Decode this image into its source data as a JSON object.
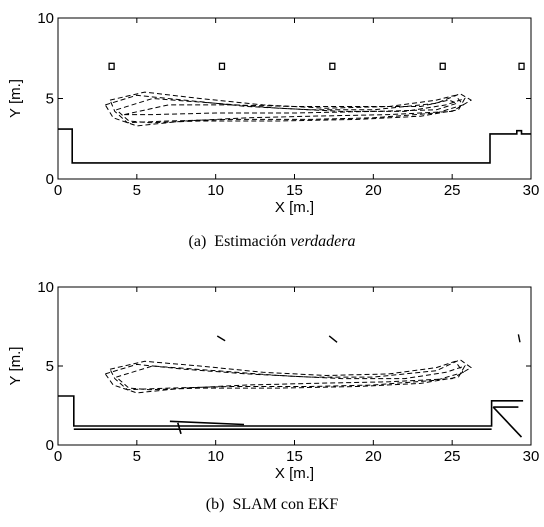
{
  "charts": [
    {
      "caption": {
        "prefix": "(a)",
        "text": "Estimación ",
        "emphasis": "verdadera"
      },
      "chart_data": {
        "type": "line",
        "xlabel": "X [m.]",
        "ylabel": "Y [m.]",
        "xlim": [
          0,
          30
        ],
        "ylim": [
          0,
          10
        ],
        "xticks": [
          0,
          5,
          10,
          15,
          20,
          25,
          30
        ],
        "yticks": [
          0,
          5,
          10
        ],
        "grid": false,
        "series": [
          {
            "style": "solid",
            "points": [
              [
                0,
                3.1
              ],
              [
                0.9,
                3.1
              ],
              [
                0.9,
                1.0
              ],
              [
                27.4,
                1.0
              ],
              [
                27.4,
                2.8
              ],
              [
                29.1,
                2.8
              ],
              [
                29.1,
                3.0
              ],
              [
                29.4,
                3.0
              ],
              [
                29.4,
                2.8
              ],
              [
                30,
                2.8
              ]
            ]
          },
          {
            "style": "dashed",
            "points": [
              [
                3,
                4.6
              ],
              [
                5,
                5.2
              ],
              [
                8,
                4.9
              ],
              [
                12,
                4.5
              ],
              [
                16,
                4.3
              ],
              [
                20,
                4.3
              ],
              [
                24,
                4.7
              ],
              [
                25.5,
                5.3
              ],
              [
                26.2,
                4.9
              ],
              [
                25,
                4.2
              ],
              [
                21,
                4.0
              ],
              [
                16,
                3.9
              ],
              [
                12,
                3.8
              ],
              [
                8,
                3.6
              ],
              [
                5,
                3.3
              ],
              [
                3.5,
                3.8
              ],
              [
                3,
                4.6
              ]
            ]
          },
          {
            "style": "dashed",
            "points": [
              [
                3.3,
                4.9
              ],
              [
                5.5,
                5.4
              ],
              [
                9,
                5.0
              ],
              [
                13,
                4.6
              ],
              [
                17,
                4.4
              ],
              [
                21,
                4.5
              ],
              [
                24,
                4.9
              ],
              [
                25.2,
                5.2
              ],
              [
                25.7,
                4.6
              ],
              [
                24,
                4.1
              ],
              [
                20,
                3.8
              ],
              [
                16,
                3.7
              ],
              [
                11,
                3.7
              ],
              [
                7,
                3.6
              ],
              [
                4.4,
                3.5
              ],
              [
                3.6,
                4.2
              ],
              [
                3.3,
                4.9
              ]
            ]
          },
          {
            "style": "dashed",
            "points": [
              [
                3.7,
                4.3
              ],
              [
                6,
                5.0
              ],
              [
                10,
                4.7
              ],
              [
                14,
                4.4
              ],
              [
                18,
                4.2
              ],
              [
                22,
                4.2
              ],
              [
                24.6,
                4.6
              ],
              [
                25.8,
                5.0
              ],
              [
                25.4,
                4.3
              ],
              [
                23,
                3.9
              ],
              [
                19,
                3.7
              ],
              [
                14,
                3.6
              ],
              [
                9,
                3.6
              ],
              [
                5.8,
                3.5
              ],
              [
                4.5,
                3.6
              ],
              [
                3.7,
                4.3
              ]
            ]
          },
          {
            "style": "dashed",
            "points": [
              [
                4.2,
                4.0
              ],
              [
                7,
                4.6
              ],
              [
                11,
                4.6
              ],
              [
                15,
                4.5
              ],
              [
                19,
                4.5
              ],
              [
                23,
                4.5
              ],
              [
                24.8,
                4.9
              ],
              [
                25.3,
                4.7
              ],
              [
                24,
                4.3
              ],
              [
                20,
                4.2
              ],
              [
                15,
                4.1
              ],
              [
                10,
                4.1
              ],
              [
                6,
                4.0
              ],
              [
                4.2,
                4.0
              ]
            ]
          }
        ],
        "landmarks": [
          [
            3.4,
            7.0
          ],
          [
            10.4,
            7.0
          ],
          [
            17.4,
            7.0
          ],
          [
            24.4,
            7.0
          ],
          [
            29.4,
            7.0
          ]
        ]
      }
    },
    {
      "caption": {
        "prefix": "(b)",
        "text": "SLAM con EKF",
        "emphasis": ""
      },
      "chart_data": {
        "type": "line",
        "xlabel": "X [m.]",
        "ylabel": "Y [m.]",
        "xlim": [
          0,
          30
        ],
        "ylim": [
          0,
          10
        ],
        "xticks": [
          0,
          5,
          10,
          15,
          20,
          25,
          30
        ],
        "yticks": [
          0,
          5,
          10
        ],
        "grid": false,
        "series": [
          {
            "style": "solid",
            "points": [
              [
                0,
                3.1
              ],
              [
                1.0,
                3.1
              ],
              [
                1.0,
                1.2
              ],
              [
                27.5,
                1.2
              ],
              [
                27.5,
                2.8
              ],
              [
                29.5,
                2.8
              ]
            ]
          },
          {
            "style": "solid",
            "points": [
              [
                1.0,
                1.0
              ],
              [
                27.5,
                1.0
              ]
            ]
          },
          {
            "style": "solid",
            "points": [
              [
                27.6,
                2.4
              ],
              [
                29.2,
                2.4
              ]
            ]
          },
          {
            "style": "solid",
            "points": [
              [
                27.6,
                2.4
              ],
              [
                29.4,
                0.5
              ]
            ]
          },
          {
            "style": "solid",
            "points": [
              [
                7.1,
                1.5
              ],
              [
                11.8,
                1.3
              ]
            ]
          },
          {
            "style": "solid",
            "points": [
              [
                7.6,
                1.4
              ],
              [
                7.8,
                0.7
              ]
            ]
          },
          {
            "style": "dashed",
            "points": [
              [
                3,
                4.5
              ],
              [
                5,
                5.1
              ],
              [
                8,
                4.8
              ],
              [
                12,
                4.5
              ],
              [
                16,
                4.3
              ],
              [
                20,
                4.3
              ],
              [
                24,
                4.7
              ],
              [
                25.5,
                5.4
              ],
              [
                26.2,
                4.9
              ],
              [
                25,
                4.2
              ],
              [
                21,
                4.0
              ],
              [
                16,
                3.9
              ],
              [
                12,
                3.8
              ],
              [
                8,
                3.6
              ],
              [
                5,
                3.3
              ],
              [
                3.5,
                3.8
              ],
              [
                3,
                4.5
              ]
            ]
          },
          {
            "style": "dashed",
            "points": [
              [
                3.3,
                4.8
              ],
              [
                5.5,
                5.3
              ],
              [
                9,
                5.0
              ],
              [
                13,
                4.6
              ],
              [
                17,
                4.4
              ],
              [
                21,
                4.5
              ],
              [
                24,
                4.9
              ],
              [
                25.2,
                5.3
              ],
              [
                25.7,
                4.6
              ],
              [
                24,
                4.1
              ],
              [
                20,
                3.8
              ],
              [
                16,
                3.7
              ],
              [
                11,
                3.7
              ],
              [
                7,
                3.6
              ],
              [
                4.4,
                3.5
              ],
              [
                3.6,
                4.2
              ],
              [
                3.3,
                4.8
              ]
            ]
          },
          {
            "style": "dashed",
            "points": [
              [
                3.7,
                4.3
              ],
              [
                6,
                5.0
              ],
              [
                10,
                4.7
              ],
              [
                14,
                4.4
              ],
              [
                18,
                4.2
              ],
              [
                22,
                4.2
              ],
              [
                24.6,
                4.6
              ],
              [
                25.8,
                5.0
              ],
              [
                25.4,
                4.3
              ],
              [
                23,
                3.9
              ],
              [
                19,
                3.7
              ],
              [
                14,
                3.6
              ],
              [
                9,
                3.6
              ],
              [
                5.8,
                3.5
              ],
              [
                4.5,
                3.6
              ],
              [
                3.7,
                4.3
              ]
            ]
          }
        ],
        "landmarks_segments": [
          [
            [
              10.1,
              6.9
            ],
            [
              10.6,
              6.6
            ]
          ],
          [
            [
              17.2,
              6.9
            ],
            [
              17.7,
              6.5
            ]
          ],
          [
            [
              29.2,
              7.0
            ],
            [
              29.3,
              6.5
            ]
          ]
        ]
      }
    }
  ]
}
